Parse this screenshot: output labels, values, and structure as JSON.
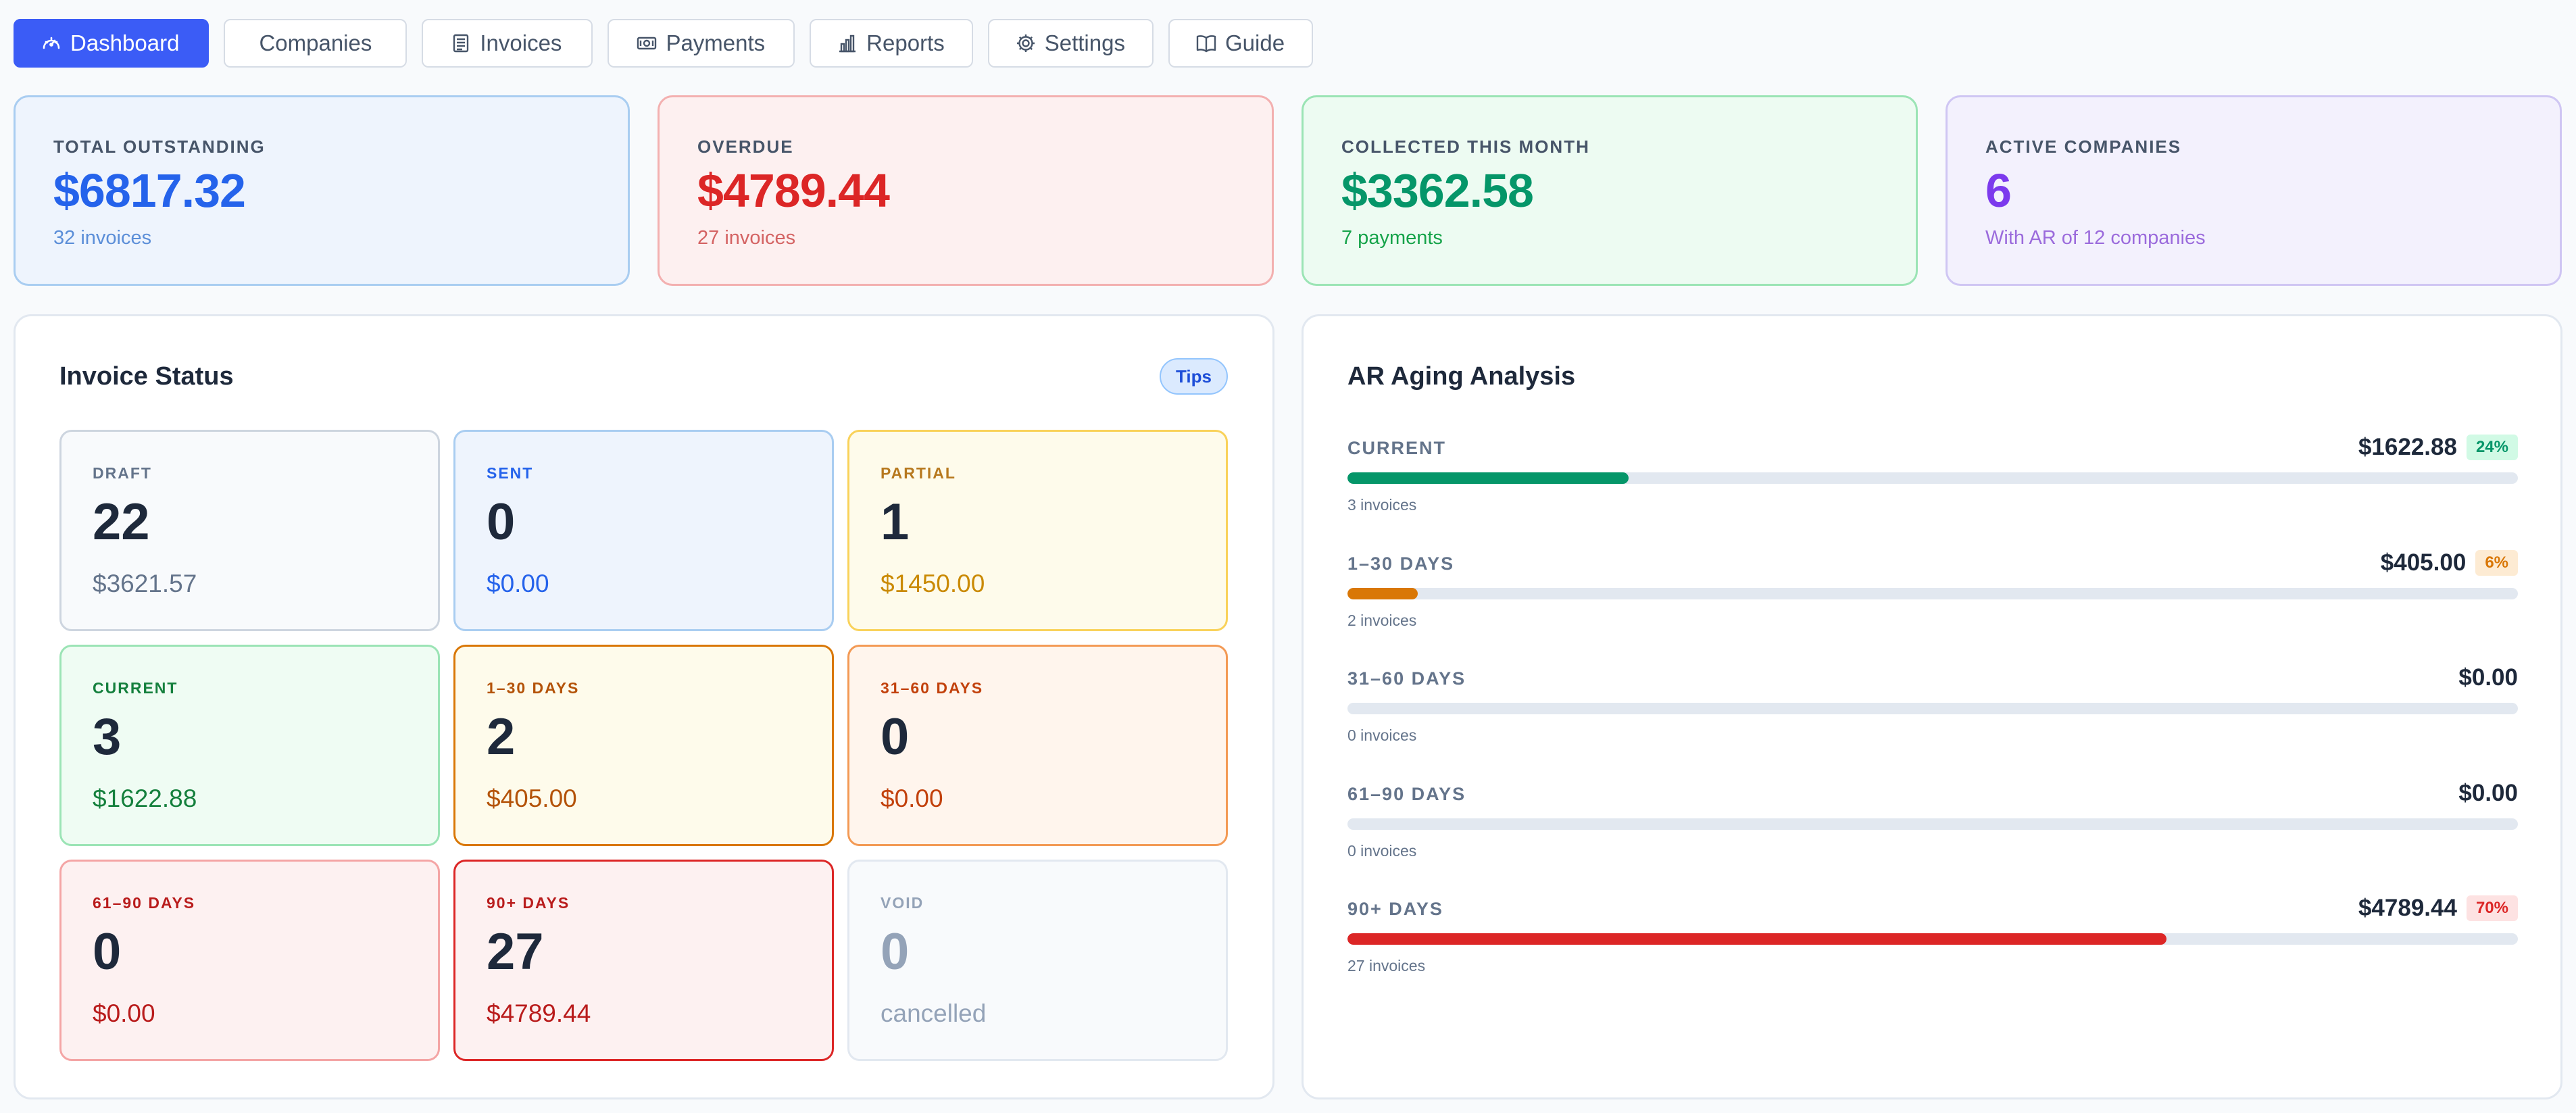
{
  "nav": [
    {
      "label": "Dashboard",
      "icon": "gauge-icon",
      "active": true
    },
    {
      "label": "Companies",
      "icon": "",
      "active": false
    },
    {
      "label": "Invoices",
      "icon": "document-icon",
      "active": false
    },
    {
      "label": "Payments",
      "icon": "cash-icon",
      "active": false
    },
    {
      "label": "Reports",
      "icon": "bar-chart-icon",
      "active": false
    },
    {
      "label": "Settings",
      "icon": "gear-icon",
      "active": false
    },
    {
      "label": "Guide",
      "icon": "book-icon",
      "active": false
    }
  ],
  "kpis": {
    "total_outstanding": {
      "label": "TOTAL OUTSTANDING",
      "value": "$6817.32",
      "sub": "32 invoices"
    },
    "overdue": {
      "label": "OVERDUE",
      "value": "$4789.44",
      "sub": "27 invoices"
    },
    "collected": {
      "label": "COLLECTED THIS MONTH",
      "value": "$3362.58",
      "sub": "7 payments"
    },
    "active_companies": {
      "label": "ACTIVE COMPANIES",
      "value": "6",
      "sub": "With AR of 12 companies"
    }
  },
  "invoice_status": {
    "title": "Invoice Status",
    "tips_label": "Tips",
    "tiles": [
      {
        "label": "DRAFT",
        "count": "22",
        "amount": "$3621.57"
      },
      {
        "label": "SENT",
        "count": "0",
        "amount": "$0.00"
      },
      {
        "label": "PARTIAL",
        "count": "1",
        "amount": "$1450.00"
      },
      {
        "label": "CURRENT",
        "count": "3",
        "amount": "$1622.88"
      },
      {
        "label": "1–30 DAYS",
        "count": "2",
        "amount": "$405.00"
      },
      {
        "label": "31–60 DAYS",
        "count": "0",
        "amount": "$0.00"
      },
      {
        "label": "61–90 DAYS",
        "count": "0",
        "amount": "$0.00"
      },
      {
        "label": "90+ DAYS",
        "count": "27",
        "amount": "$4789.44"
      },
      {
        "label": "VOID",
        "count": "0",
        "amount": "cancelled"
      }
    ]
  },
  "aging": {
    "title": "AR Aging Analysis",
    "rows": [
      {
        "label": "CURRENT",
        "amount": "$1622.88",
        "pct": "24%",
        "fill_pct": 24,
        "sub": "3 invoices",
        "color": "#059669",
        "badge_bg": "#d1fae5",
        "badge_fg": "#059669"
      },
      {
        "label": "1–30 DAYS",
        "amount": "$405.00",
        "pct": "6%",
        "fill_pct": 6,
        "sub": "2 invoices",
        "color": "#d97706",
        "badge_bg": "#fdebd3",
        "badge_fg": "#d97706"
      },
      {
        "label": "31–60 DAYS",
        "amount": "$0.00",
        "pct": "",
        "fill_pct": 0,
        "sub": "0 invoices",
        "color": "#ea580c",
        "badge_bg": "",
        "badge_fg": ""
      },
      {
        "label": "61–90 DAYS",
        "amount": "$0.00",
        "pct": "",
        "fill_pct": 0,
        "sub": "0 invoices",
        "color": "#dc2626",
        "badge_bg": "",
        "badge_fg": ""
      },
      {
        "label": "90+ DAYS",
        "amount": "$4789.44",
        "pct": "70%",
        "fill_pct": 70,
        "sub": "27 invoices",
        "color": "#dc2626",
        "badge_bg": "#fde2e2",
        "badge_fg": "#dc2626"
      }
    ]
  }
}
